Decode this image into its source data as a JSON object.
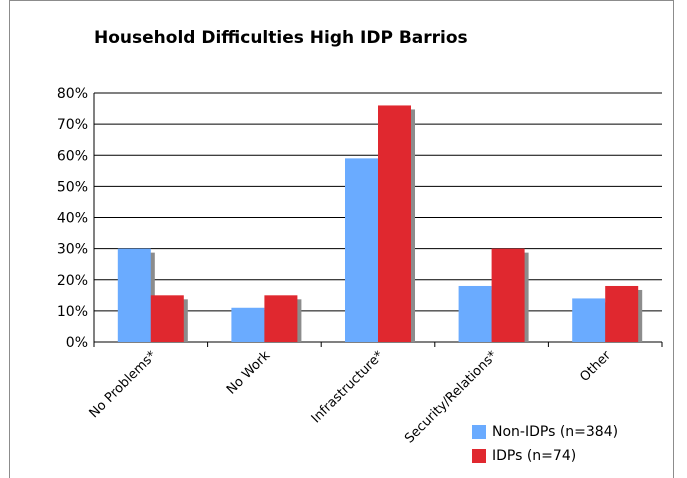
{
  "chart_data": {
    "type": "bar",
    "title": "Household Difficulties High IDP Barrios",
    "categories": [
      "No Problems*",
      "No Work",
      "Infrastructure*",
      "Security/Relations*",
      "Other"
    ],
    "series": [
      {
        "name": "Non-IDPs (n=384)",
        "color": "#6aabff",
        "values": [
          30,
          11,
          59,
          18,
          14
        ]
      },
      {
        "name": "IDPs (n=74)",
        "color": "#e0282f",
        "values": [
          15,
          15,
          76,
          30,
          18
        ]
      }
    ],
    "yticks": [
      "0%",
      "10%",
      "20%",
      "30%",
      "40%",
      "50%",
      "60%",
      "70%",
      "80%"
    ],
    "ylim": [
      0,
      80
    ],
    "grid": true,
    "legend": "bottom-right"
  }
}
